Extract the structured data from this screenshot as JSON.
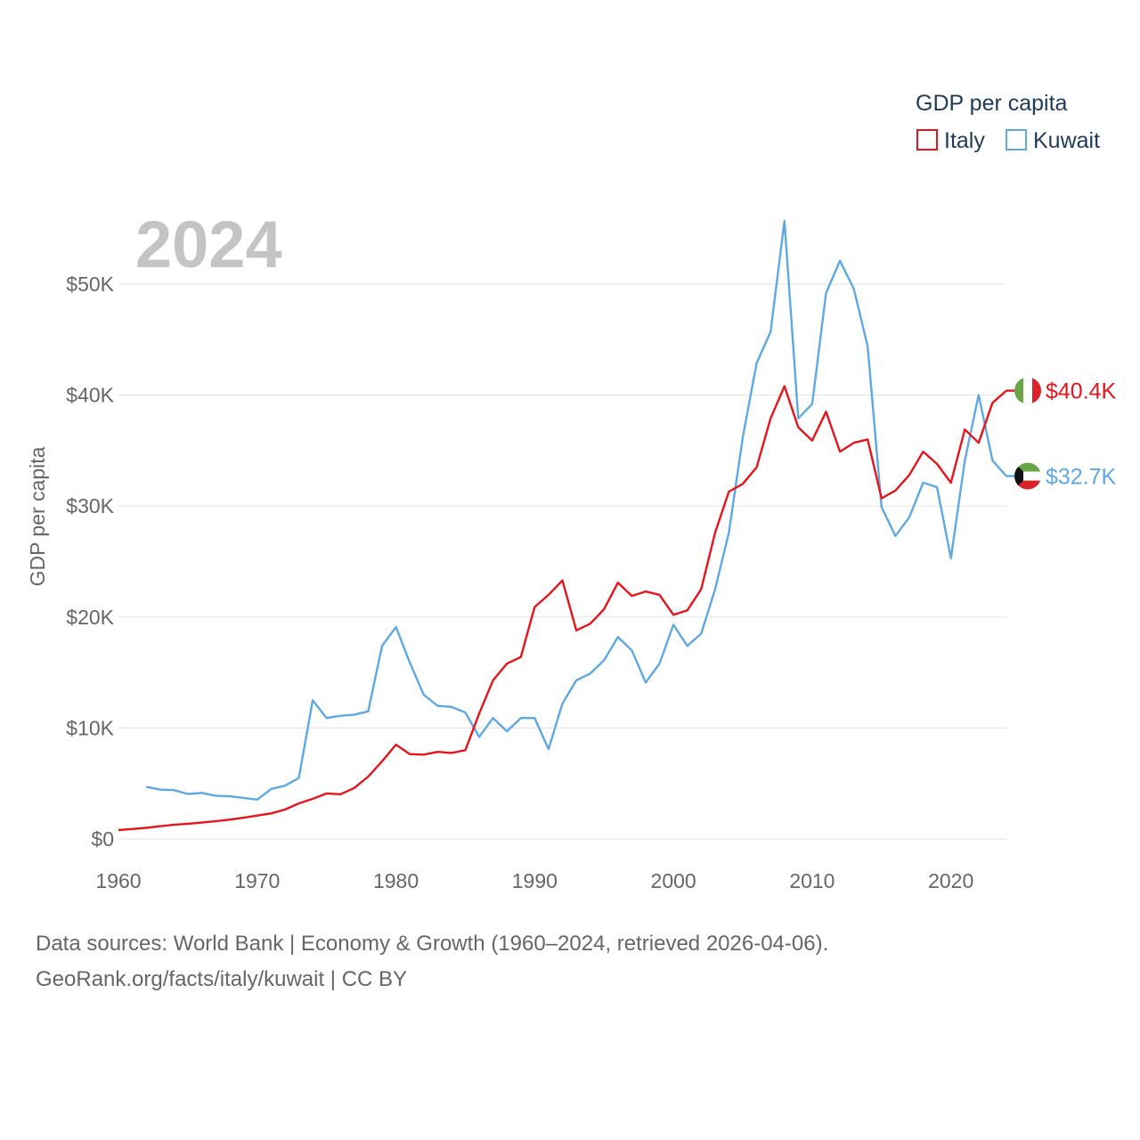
{
  "legend": {
    "title": "GDP per capita",
    "items": [
      {
        "label": "Italy",
        "color": "#e8131b"
      },
      {
        "label": "Kuwait",
        "color": "#5ea8e3"
      }
    ]
  },
  "year_display": "2024",
  "y_axis_label": "GDP per capita",
  "end_labels": {
    "italy": "$40.4K",
    "kuwait": "$32.7K"
  },
  "footer": {
    "line1": "Data sources: World Bank | Economy & Growth (1960–2024, retrieved 2026-04-06).",
    "line2": "GeoRank.org/facts/italy/kuwait | CC BY"
  },
  "chart_data": {
    "type": "line",
    "title": "GDP per capita",
    "xlabel": "",
    "ylabel": "GDP per capita",
    "xlim": [
      1960,
      2024
    ],
    "ylim": [
      0,
      50000
    ],
    "x_ticks": [
      1960,
      1970,
      1980,
      1990,
      2000,
      2010,
      2020
    ],
    "x_tick_labels": [
      "1960",
      "1970",
      "1980",
      "1990",
      "2000",
      "2010",
      "2020"
    ],
    "y_ticks": [
      0,
      10000,
      20000,
      30000,
      40000,
      50000
    ],
    "y_tick_labels": [
      "$0",
      "$10K",
      "$20K",
      "$30K",
      "$40K",
      "$50K"
    ],
    "grid": true,
    "legend_position": "top-right",
    "series": [
      {
        "name": "Italy",
        "color": "#e8131b",
        "x_start": 1960,
        "values": [
          800,
          900,
          1000,
          1150,
          1280,
          1370,
          1480,
          1600,
          1740,
          1910,
          2110,
          2300,
          2650,
          3200,
          3620,
          4100,
          4030,
          4600,
          5620,
          7000,
          8500,
          7650,
          7600,
          7850,
          7750,
          8000,
          11300,
          14300,
          15800,
          16400,
          20900,
          22000,
          23300,
          18800,
          19400,
          20700,
          23100,
          21900,
          22300,
          22000,
          20200,
          20600,
          22500,
          27600,
          31300,
          32000,
          33500,
          37900,
          40800,
          37100,
          35900,
          38500,
          34900,
          35700,
          36000,
          30700,
          31400,
          32800,
          34900,
          33800,
          32100,
          36900,
          35700,
          39300,
          40400
        ]
      },
      {
        "name": "Kuwait",
        "color": "#5ea8e3",
        "x_start": 1962,
        "values": [
          4700,
          4450,
          4400,
          4050,
          4150,
          3900,
          3850,
          3700,
          3550,
          4500,
          4800,
          5500,
          12500,
          10900,
          11100,
          11200,
          11500,
          17400,
          19100,
          15900,
          13000,
          12000,
          11900,
          11400,
          9200,
          10900,
          9700,
          10900,
          10900,
          8100,
          12200,
          14300,
          14900,
          16100,
          18200,
          17000,
          14100,
          15800,
          19300,
          17400,
          18500,
          22500,
          27600,
          36200,
          42900,
          45700,
          55700,
          37900,
          39200,
          49200,
          52100,
          49600,
          44400,
          29900,
          27300,
          29000,
          32100,
          31700,
          25300,
          34100,
          40000,
          34100,
          32700
        ]
      }
    ]
  }
}
